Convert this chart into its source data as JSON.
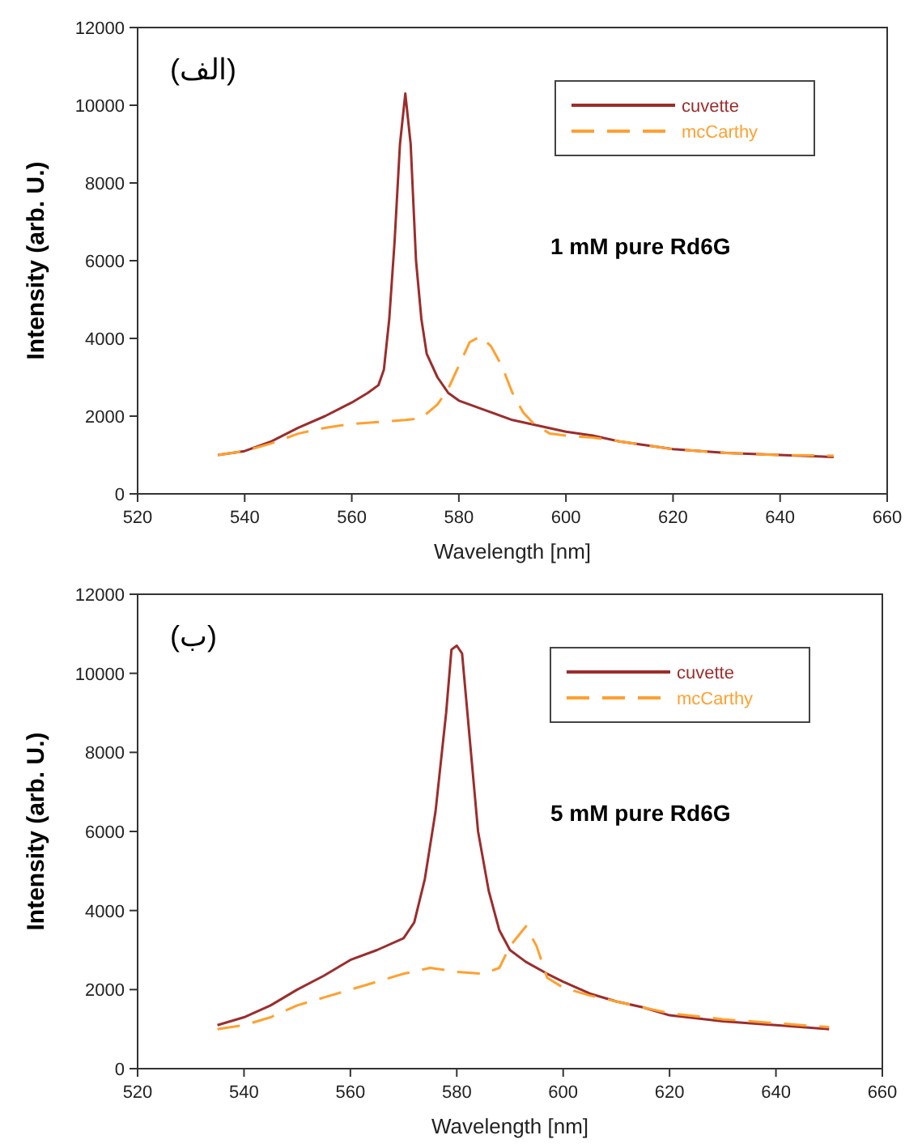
{
  "chart_data": [
    {
      "type": "line",
      "xlabel": "Wavelength [nm]",
      "ylabel": "Intensity (arb. U.)",
      "annotations": [
        "(الف)",
        "1 mM pure Rd6G"
      ],
      "xlim": [
        520,
        660
      ],
      "ylim": [
        0,
        12000
      ],
      "xticks": [
        520,
        540,
        560,
        580,
        600,
        620,
        640,
        660
      ],
      "yticks": [
        0,
        2000,
        4000,
        6000,
        8000,
        10000,
        12000
      ],
      "legend": "top right",
      "grid": false,
      "marker": "none",
      "series": [
        {
          "name": "cuvette",
          "color": "#9b2d2d",
          "line_style": "solid",
          "x": [
            535,
            540,
            545,
            550,
            555,
            560,
            563,
            565,
            566,
            567,
            568,
            569,
            570,
            571,
            572,
            573,
            574,
            576,
            578,
            580,
            585,
            590,
            595,
            600,
            605,
            610,
            615,
            620,
            630,
            640,
            650
          ],
          "values": [
            1000,
            1100,
            1350,
            1700,
            2000,
            2350,
            2600,
            2800,
            3200,
            4500,
            6500,
            9000,
            10300,
            9000,
            6000,
            4500,
            3600,
            3000,
            2600,
            2400,
            2150,
            1900,
            1750,
            1600,
            1500,
            1350,
            1250,
            1150,
            1050,
            1000,
            950
          ]
        },
        {
          "name": "mcCarthy",
          "color": "#ffa030",
          "line_style": "dashed",
          "x": [
            535,
            540,
            545,
            550,
            555,
            560,
            565,
            570,
            573,
            576,
            578,
            580,
            582,
            584,
            586,
            588,
            590,
            592,
            594,
            597,
            600,
            605,
            610,
            620,
            630,
            640,
            650
          ],
          "values": [
            1000,
            1100,
            1300,
            1550,
            1700,
            1800,
            1850,
            1900,
            1950,
            2300,
            2700,
            3300,
            3900,
            4050,
            3800,
            3300,
            2600,
            2100,
            1800,
            1550,
            1500,
            1450,
            1350,
            1150,
            1050,
            1000,
            980
          ]
        }
      ]
    },
    {
      "type": "line",
      "xlabel": "Wavelength [nm]",
      "ylabel": "Intensity (arb. U.)",
      "annotations": [
        "(ب)",
        "5 mM pure Rd6G"
      ],
      "xlim": [
        520,
        660
      ],
      "ylim": [
        0,
        12000
      ],
      "xticks": [
        520,
        540,
        560,
        580,
        600,
        620,
        640,
        660
      ],
      "yticks": [
        0,
        2000,
        4000,
        6000,
        8000,
        10000,
        12000
      ],
      "legend": "top right",
      "grid": false,
      "marker": "none",
      "series": [
        {
          "name": "cuvette",
          "color": "#9b2d2d",
          "line_style": "solid",
          "x": [
            535,
            540,
            545,
            550,
            555,
            560,
            565,
            570,
            572,
            574,
            576,
            578,
            579,
            580,
            581,
            582,
            583,
            584,
            586,
            588,
            590,
            593,
            597,
            600,
            605,
            610,
            615,
            620,
            630,
            640,
            650
          ],
          "values": [
            1100,
            1300,
            1600,
            2000,
            2350,
            2750,
            3000,
            3300,
            3700,
            4800,
            6500,
            9000,
            10600,
            10700,
            10500,
            9000,
            7500,
            6000,
            4500,
            3500,
            3000,
            2700,
            2400,
            2200,
            1900,
            1700,
            1550,
            1350,
            1200,
            1100,
            1000
          ]
        },
        {
          "name": "mcCarthy",
          "color": "#ffa030",
          "line_style": "dashed",
          "x": [
            535,
            540,
            545,
            550,
            555,
            560,
            565,
            570,
            575,
            580,
            585,
            588,
            590,
            593,
            595,
            597,
            600,
            605,
            610,
            620,
            630,
            640,
            650
          ],
          "values": [
            1000,
            1100,
            1300,
            1600,
            1800,
            2000,
            2200,
            2400,
            2550,
            2450,
            2400,
            2550,
            3100,
            3600,
            3100,
            2300,
            2050,
            1850,
            1700,
            1400,
            1250,
            1150,
            1050
          ]
        }
      ]
    }
  ]
}
